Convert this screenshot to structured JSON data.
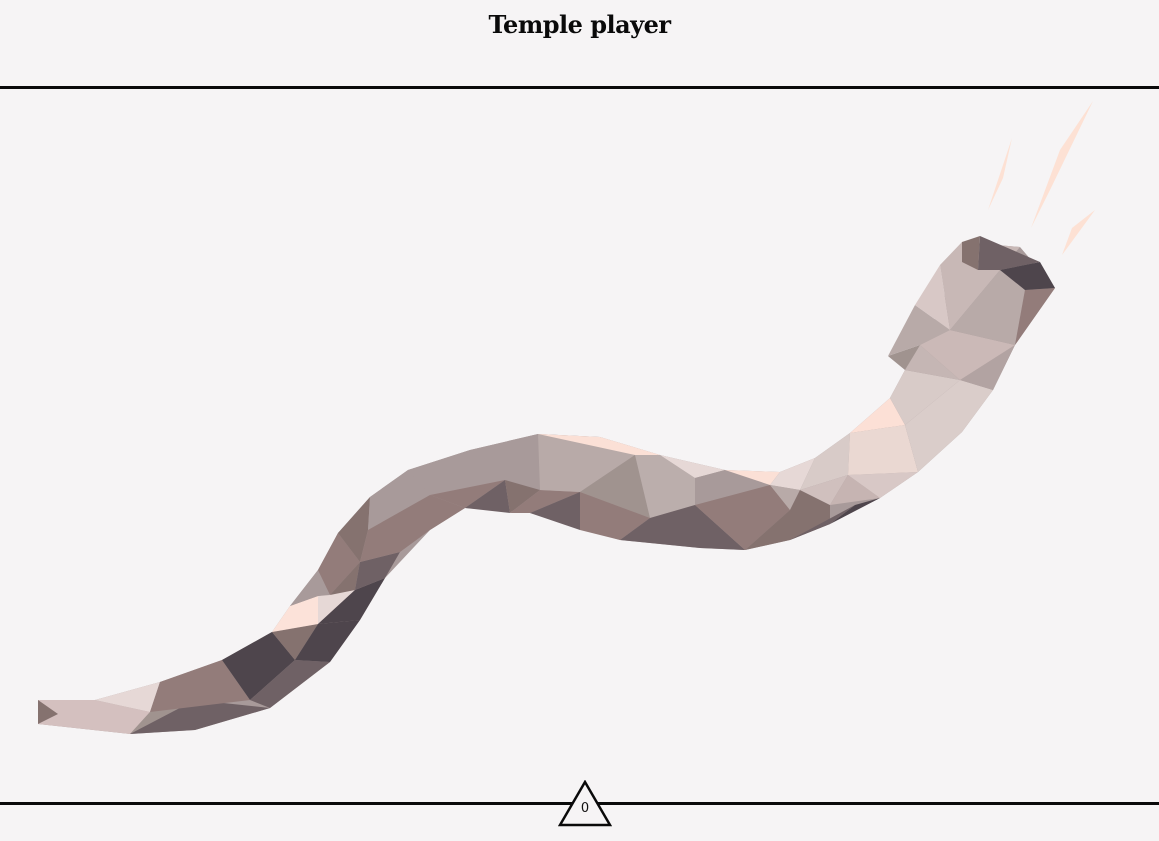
{
  "header": {
    "title": "Temple player"
  },
  "counter": {
    "value": "0"
  },
  "colors": {
    "background": "#f6f4f5",
    "rule": "#0a0a0a",
    "shofar_dark": "#4e454c",
    "shofar_mid": "#937c7a",
    "shofar_light": "#d8cbc8",
    "shofar_highlight": "#fbe0d6"
  },
  "icons": {
    "shofar": "shofar-horn-icon",
    "sound": "sound-wave-icon",
    "counter": "triangle-icon"
  }
}
